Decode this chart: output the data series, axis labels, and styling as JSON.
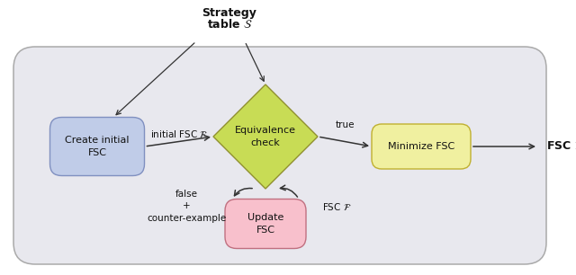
{
  "fig_width": 6.4,
  "fig_height": 3.06,
  "bg_facecolor": "#e8e8ee",
  "bg_edgecolor": "#aaaaaa",
  "node_create_facecolor": "#c0cce8",
  "node_create_edgecolor": "#8090c0",
  "node_equiv_facecolor": "#c8dc55",
  "node_equiv_edgecolor": "#909030",
  "node_minimize_facecolor": "#f0f0a0",
  "node_minimize_edgecolor": "#c0b030",
  "node_update_facecolor": "#f8c0cc",
  "node_update_edgecolor": "#c07080",
  "arrow_color": "#333333",
  "text_color": "#111111",
  "title_text_line1": "Strategy",
  "title_text_line2": "table $\\mathcal{S}$",
  "label_initial": "initial FSC $\\mathcal{F}$",
  "label_true": "true",
  "label_false": "false\n+\ncounter-example",
  "label_fsc_f": "FSC $\\mathcal{F}$",
  "label_output": "$\\mathbf{FSC}$ $\\mathcal{F}$",
  "node_create_text": "Create initial\nFSC",
  "node_equiv_text": "Equivalence\ncheck",
  "node_minimize_text": "Minimize FSC",
  "node_update_text": "Update\nFSC"
}
